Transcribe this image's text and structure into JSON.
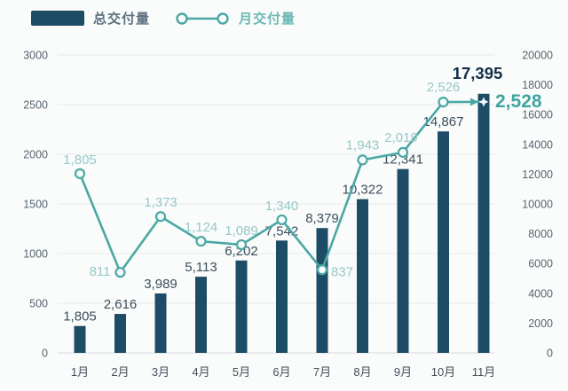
{
  "legend": {
    "total_label": "总交付量",
    "monthly_label": "月交付量"
  },
  "colors": {
    "background": "#fafbfb",
    "bar": "#1d4c66",
    "bar_label": "#3c4e5c",
    "final_bar_label": "#132f49",
    "line": "#49a8a4",
    "line_label": "#96c9c6",
    "final_line_label": "#3ea5a0",
    "marker_fill": "#f6fbfb",
    "grid": "#e8eaea",
    "axis_line": "#d7dadc",
    "axis_text": "#57646f",
    "month_text": "#454f59"
  },
  "chart_data": {
    "type": "bar",
    "subtype": "bar+line combo, dual y-axis",
    "title": "",
    "categories": [
      "1月",
      "2月",
      "3月",
      "4月",
      "5月",
      "6月",
      "7月",
      "8月",
      "9月",
      "10月",
      "11月"
    ],
    "series": [
      {
        "name": "总交付量",
        "type": "bar",
        "axis": "right",
        "values": [
          1805,
          2616,
          3989,
          5113,
          6202,
          7542,
          8379,
          10322,
          12341,
          14867,
          17395
        ],
        "labels": [
          "1,805",
          "2,616",
          "3,989",
          "5,113",
          "6,202",
          "7,542",
          "8,379",
          "10,322",
          "12,341",
          "14,867",
          "17,395"
        ]
      },
      {
        "name": "月交付量",
        "type": "line",
        "axis": "left",
        "values": [
          1805,
          811,
          1373,
          1124,
          1089,
          1340,
          837,
          1943,
          2019,
          2526,
          2528
        ],
        "labels": [
          "1,805",
          "811",
          "1,373",
          "1,124",
          "1,089",
          "1,340",
          "837",
          "1,943",
          "2,019",
          "2,526",
          "2,528"
        ]
      }
    ],
    "left_axis": {
      "min": 0,
      "max": 3000,
      "step": 500,
      "tick_labels": [
        "0",
        "500",
        "1000",
        "1500",
        "2000",
        "2500",
        "3000"
      ]
    },
    "right_axis": {
      "min": 0,
      "max": 20000,
      "step": 2000,
      "tick_labels": [
        "0",
        "2000",
        "4000",
        "6000",
        "8000",
        "10000",
        "12000",
        "14000",
        "16000",
        "18000",
        "20000"
      ]
    },
    "grid": true,
    "legend_position": "top-left",
    "highlight_last_point": true
  }
}
